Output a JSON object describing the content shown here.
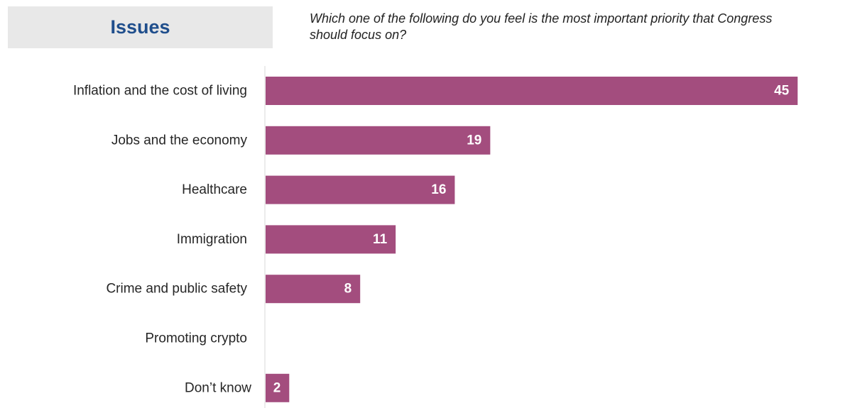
{
  "section": {
    "title": "Issues"
  },
  "question": {
    "line1": "Which one of the following do you feel is the most important priority that Congress",
    "line2": "should focus on?"
  },
  "colors": {
    "bar": "#a34d7e",
    "section_title": "#1f4e8c",
    "section_background": "#e8e8e8",
    "axis_line": "#d9d9d9"
  },
  "chart_data": {
    "type": "bar",
    "orientation": "horizontal",
    "categories": [
      "Inflation and the cost of living",
      "Jobs and the economy",
      "Healthcare",
      "Immigration",
      "Crime and public safety",
      "Promoting crypto",
      "Don’t know"
    ],
    "values": [
      45,
      19,
      16,
      11,
      8,
      null,
      2
    ],
    "value_labels": [
      "45",
      "19",
      "16",
      "11",
      "8",
      "",
      "2"
    ],
    "xlim": [
      0,
      50
    ],
    "grid": false,
    "legend": "none"
  }
}
